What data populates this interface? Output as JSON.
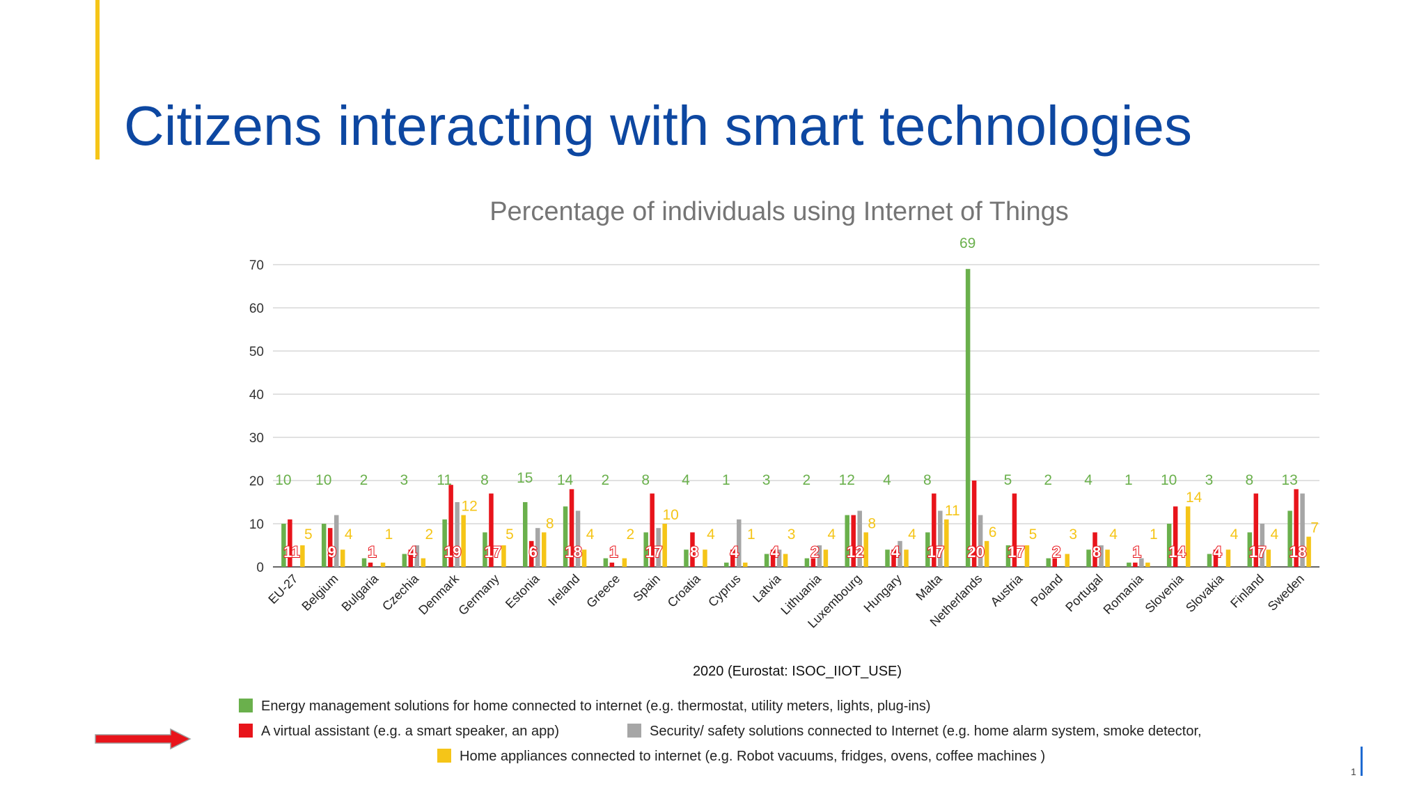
{
  "slide": {
    "title": "Citizens interacting with smart technologies",
    "footer_text": "1"
  },
  "colors": {
    "accent": "#f5c518",
    "title": "#0d47a1",
    "arrow": "#e8141b"
  },
  "chart_data": {
    "type": "bar",
    "title": "Percentage of individuals using Internet of Things",
    "xlabel": "2020 (Eurostat: ISOC_IIOT_USE)",
    "ylabel": "",
    "ylim": [
      0,
      70
    ],
    "yticks": [
      0,
      10,
      20,
      30,
      40,
      50,
      60,
      70
    ],
    "grid": true,
    "legend_position": "bottom",
    "categories": [
      "EU-27",
      "Belgium",
      "Bulgaria",
      "Czechia",
      "Denmark",
      "Germany",
      "Estonia",
      "Ireland",
      "Greece",
      "Spain",
      "Croatia",
      "Cyprus",
      "Latvia",
      "Lithuania",
      "Luxembourg",
      "Hungary",
      "Malta",
      "Netherlands",
      "Austria",
      "Poland",
      "Portugal",
      "Romania",
      "Slovenia",
      "Slovakia",
      "Finland",
      "Sweden"
    ],
    "series": [
      {
        "name": "Energy management solutions for home connected to internet (e.g. thermostat, utility meters, lights, plug-ins)",
        "color": "#6ab04c",
        "values": [
          10,
          10,
          2,
          3,
          11,
          8,
          15,
          14,
          2,
          8,
          4,
          1,
          3,
          2,
          12,
          4,
          8,
          69,
          5,
          2,
          4,
          1,
          10,
          3,
          8,
          13
        ]
      },
      {
        "name": "A virtual assistant (e.g. a smart speaker, an app)",
        "color": "#e8141b",
        "values": [
          11,
          9,
          1,
          4,
          19,
          17,
          6,
          18,
          1,
          17,
          8,
          4,
          4,
          2,
          12,
          4,
          17,
          20,
          17,
          2,
          8,
          1,
          14,
          4,
          17,
          18
        ]
      },
      {
        "name": "Security/ safety solutions connected to Internet (e.g. home alarm system, smoke detector,",
        "color": "#a6a6a6",
        "values": [
          null,
          12,
          null,
          5,
          15,
          null,
          9,
          13,
          null,
          9,
          null,
          11,
          4,
          5,
          13,
          6,
          13,
          12,
          null,
          null,
          5,
          2,
          null,
          null,
          10,
          17
        ]
      },
      {
        "name": "Home appliances connected to internet (e.g. Robot vacuums, fridges, ovens, coffee machines )",
        "color": "#f5c518",
        "values": [
          5,
          4,
          1,
          2,
          12,
          5,
          8,
          4,
          2,
          10,
          4,
          1,
          3,
          4,
          8,
          4,
          11,
          6,
          5,
          3,
          4,
          1,
          14,
          4,
          4,
          7
        ]
      }
    ],
    "value_labels": {
      "green": [
        10,
        10,
        2,
        3,
        11,
        8,
        15,
        14,
        2,
        8,
        4,
        1,
        3,
        2,
        12,
        4,
        8,
        69,
        5,
        2,
        4,
        1,
        10,
        3,
        8,
        13
      ],
      "red": [
        11,
        9,
        1,
        4,
        19,
        17,
        6,
        18,
        1,
        17,
        8,
        4,
        4,
        2,
        12,
        4,
        17,
        20,
        17,
        2,
        8,
        1,
        14,
        4,
        17,
        18
      ],
      "yellow": [
        5,
        4,
        1,
        2,
        12,
        5,
        8,
        4,
        2,
        10,
        4,
        1,
        3,
        4,
        8,
        4,
        11,
        6,
        5,
        3,
        4,
        1,
        14,
        4,
        4,
        7
      ]
    }
  }
}
